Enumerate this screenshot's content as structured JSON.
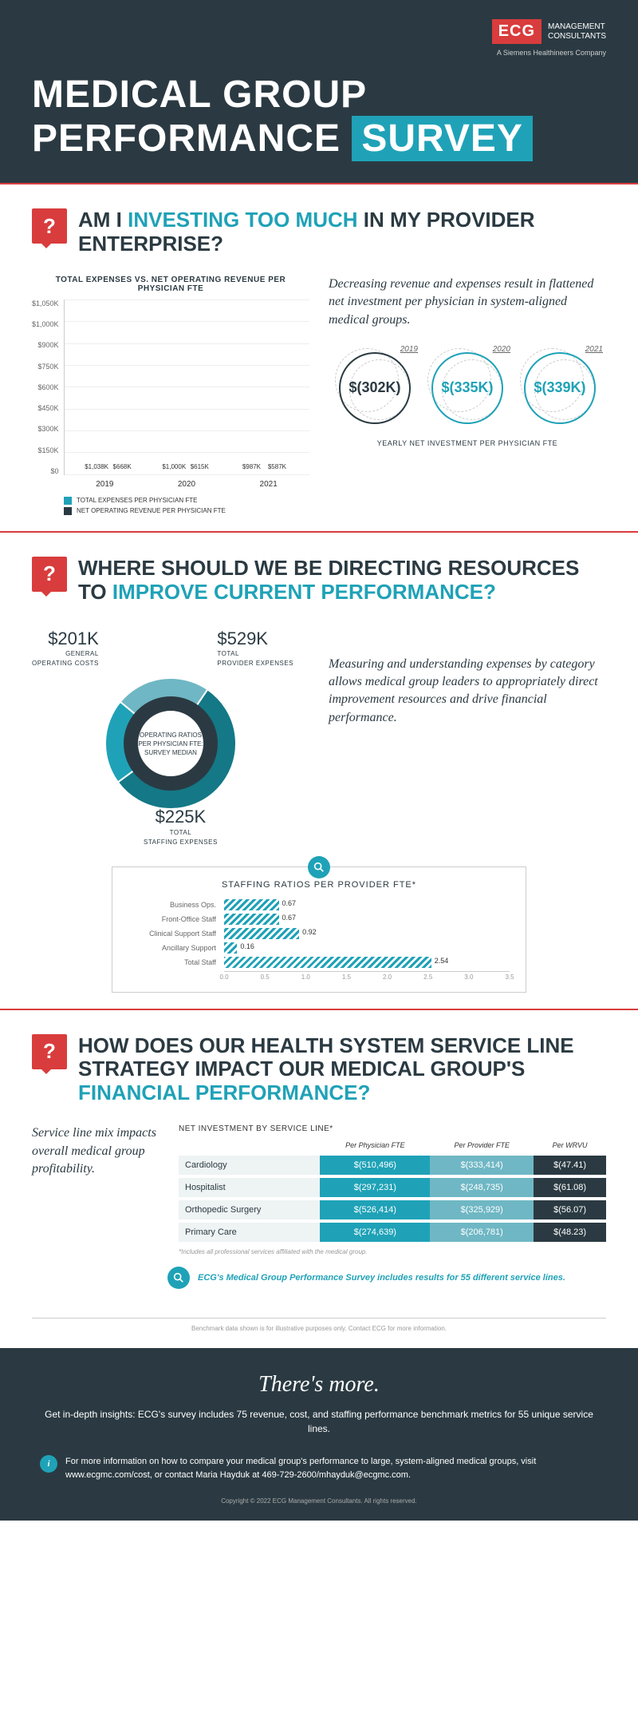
{
  "header": {
    "logo_brand": "ECG",
    "logo_sub1": "MANAGEMENT",
    "logo_sub2": "CONSULTANTS",
    "tagline": "A Siemens Healthineers Company",
    "title_part1": "MEDICAL GROUP PERFORMANCE",
    "title_part2": "SURVEY"
  },
  "colors": {
    "dark": "#2b3a42",
    "teal": "#1fa2b7",
    "teal_light": "#6fb7c4",
    "red": "#d93c3c",
    "teal_dark": "#147886"
  },
  "section1": {
    "q_pre": "AM I ",
    "q_highlight": "INVESTING TOO MUCH",
    "q_post": " IN MY PROVIDER ENTERPRISE?",
    "chart_title": "TOTAL EXPENSES VS. NET OPERATING REVENUE PER PHYSICIAN FTE",
    "y_ticks": [
      "$1,050K",
      "$1,000K",
      "$900K",
      "$750K",
      "$600K",
      "$450K",
      "$300K",
      "$150K",
      "$0"
    ],
    "years": [
      "2019",
      "2020",
      "2021"
    ],
    "bars": [
      {
        "exp": 1038,
        "exp_label": "$1,038K",
        "rev": 668,
        "rev_label": "$668K"
      },
      {
        "exp": 1000,
        "exp_label": "$1,000K",
        "rev": 615,
        "rev_label": "$615K"
      },
      {
        "exp": 987,
        "exp_label": "$987K",
        "rev": 587,
        "rev_label": "$587K"
      }
    ],
    "y_max": 1050,
    "legend": [
      {
        "color": "#1fa2b7",
        "label": "TOTAL EXPENSES PER PHYSICIAN FTE"
      },
      {
        "color": "#2b3a42",
        "label": "NET OPERATING REVENUE PER PHYSICIAN FTE"
      }
    ],
    "body": "Decreasing revenue and expenses result in flattened net investment per physician in system-aligned medical groups.",
    "circles": [
      {
        "year": "2019",
        "value": "$(302K)",
        "color": "#2b3a42"
      },
      {
        "year": "2020",
        "value": "$(335K)",
        "color": "#1fa2b7"
      },
      {
        "year": "2021",
        "value": "$(339K)",
        "color": "#1fa2b7"
      }
    ],
    "circles_caption": "YEARLY NET INVESTMENT PER PHYSICIAN FTE"
  },
  "section2": {
    "q_pre": "WHERE SHOULD WE BE DIRECTING RESOURCES TO ",
    "q_highlight": "IMPROVE CURRENT PERFORMANCE?",
    "donut": {
      "center_l1": "OPERATING RATIOS",
      "center_l2": "PER PHYSICIAN FTE:",
      "center_l3": "SURVEY MEDIAN",
      "slices": [
        {
          "label": "TOTAL PROVIDER EXPENSES",
          "value_label": "$529K",
          "value": 529,
          "color": "#147886"
        },
        {
          "label": "GENERAL OPERATING COSTS",
          "value_label": "$201K",
          "value": 201,
          "color": "#1fa2b7"
        },
        {
          "label": "TOTAL STAFFING EXPENSES",
          "value_label": "$225K",
          "value": 225,
          "color": "#6fb7c4"
        }
      ]
    },
    "body": "Measuring and understanding expenses by category allows medical group leaders to appropriately direct improvement resources and drive financial performance.",
    "staffing_title": "STAFFING RATIOS PER PROVIDER FTE*",
    "hbars": {
      "max": 3.5,
      "ticks": [
        "0.0",
        "0.5",
        "1.0",
        "1.5",
        "2.0",
        "2.5",
        "3.0",
        "3.5"
      ],
      "rows": [
        {
          "label": "Business Ops.",
          "value": 0.67,
          "value_label": "0.67"
        },
        {
          "label": "Front-Office Staff",
          "value": 0.67,
          "value_label": "0.67"
        },
        {
          "label": "Clinical Support Staff",
          "value": 0.92,
          "value_label": "0.92"
        },
        {
          "label": "Ancillary Support",
          "value": 0.16,
          "value_label": "0.16"
        },
        {
          "label": "Total Staff",
          "value": 2.54,
          "value_label": "2.54"
        }
      ]
    }
  },
  "section3": {
    "q_pre": "HOW DOES OUR HEALTH SYSTEM SERVICE LINE STRATEGY IMPACT OUR MEDICAL GROUP'S ",
    "q_highlight": "FINANCIAL PERFORMANCE?",
    "body": "Service line mix impacts overall medical group profitability.",
    "table_title": "NET INVESTMENT BY SERVICE LINE*",
    "cols": [
      "",
      "Per Physician FTE",
      "Per Provider FTE",
      "Per WRVU"
    ],
    "rows": [
      {
        "label": "Cardiology",
        "a": "$(510,496)",
        "b": "$(333,414)",
        "c": "$(47.41)"
      },
      {
        "label": "Hospitalist",
        "a": "$(297,231)",
        "b": "$(248,735)",
        "c": "$(61.08)"
      },
      {
        "label": "Orthopedic Surgery",
        "a": "$(526,414)",
        "b": "$(325,929)",
        "c": "$(56.07)"
      },
      {
        "label": "Primary Care",
        "a": "$(274,639)",
        "b": "$(206,781)",
        "c": "$(48.23)"
      }
    ],
    "footnote": "*Includes all professional services affiliated with the medical group.",
    "callout": "ECG's Medical Group Performance Survey includes results for 55 different service lines."
  },
  "bench_note": "Benchmark data shown is for illustrative purposes only. Contact ECG for more information.",
  "footer": {
    "title": "There's more.",
    "sub": "Get in-depth insights: ECG's survey includes 75 revenue, cost, and staffing performance benchmark metrics for 55 unique service lines.",
    "more": "For more information on how to compare your medical group's performance to large, system-aligned medical groups, visit www.ecgmc.com/cost, or contact Maria Hayduk at 469-729-2600/mhayduk@ecgmc.com.",
    "copyright": "Copyright © 2022 ECG Management Consultants. All rights reserved."
  }
}
